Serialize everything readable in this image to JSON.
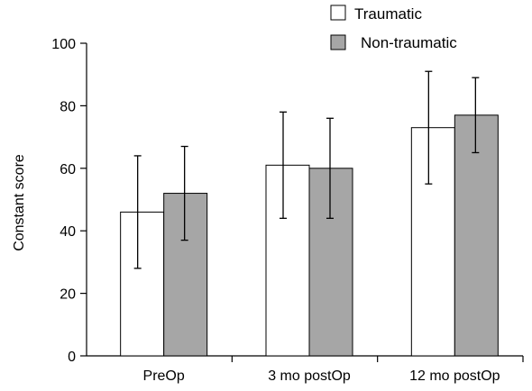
{
  "chart_data": {
    "type": "bar",
    "ylabel": "Constant score",
    "xlabel": "",
    "ylim": [
      0,
      100
    ],
    "yticks": [
      0,
      20,
      40,
      60,
      80,
      100
    ],
    "categories": [
      "PreOp",
      "3 mo postOp",
      "12 mo postOp"
    ],
    "series": [
      {
        "name": "Traumatic",
        "color": "#ffffff",
        "values": [
          46,
          61,
          73
        ],
        "error_low": [
          28,
          44,
          55
        ],
        "error_high": [
          64,
          78,
          91
        ]
      },
      {
        "name": "Non-traumatic",
        "color": "#a6a6a6",
        "values": [
          52,
          60,
          77
        ],
        "error_low": [
          37,
          44,
          65
        ],
        "error_high": [
          67,
          76,
          89
        ]
      }
    ],
    "grid": false,
    "legend": "top-right"
  }
}
